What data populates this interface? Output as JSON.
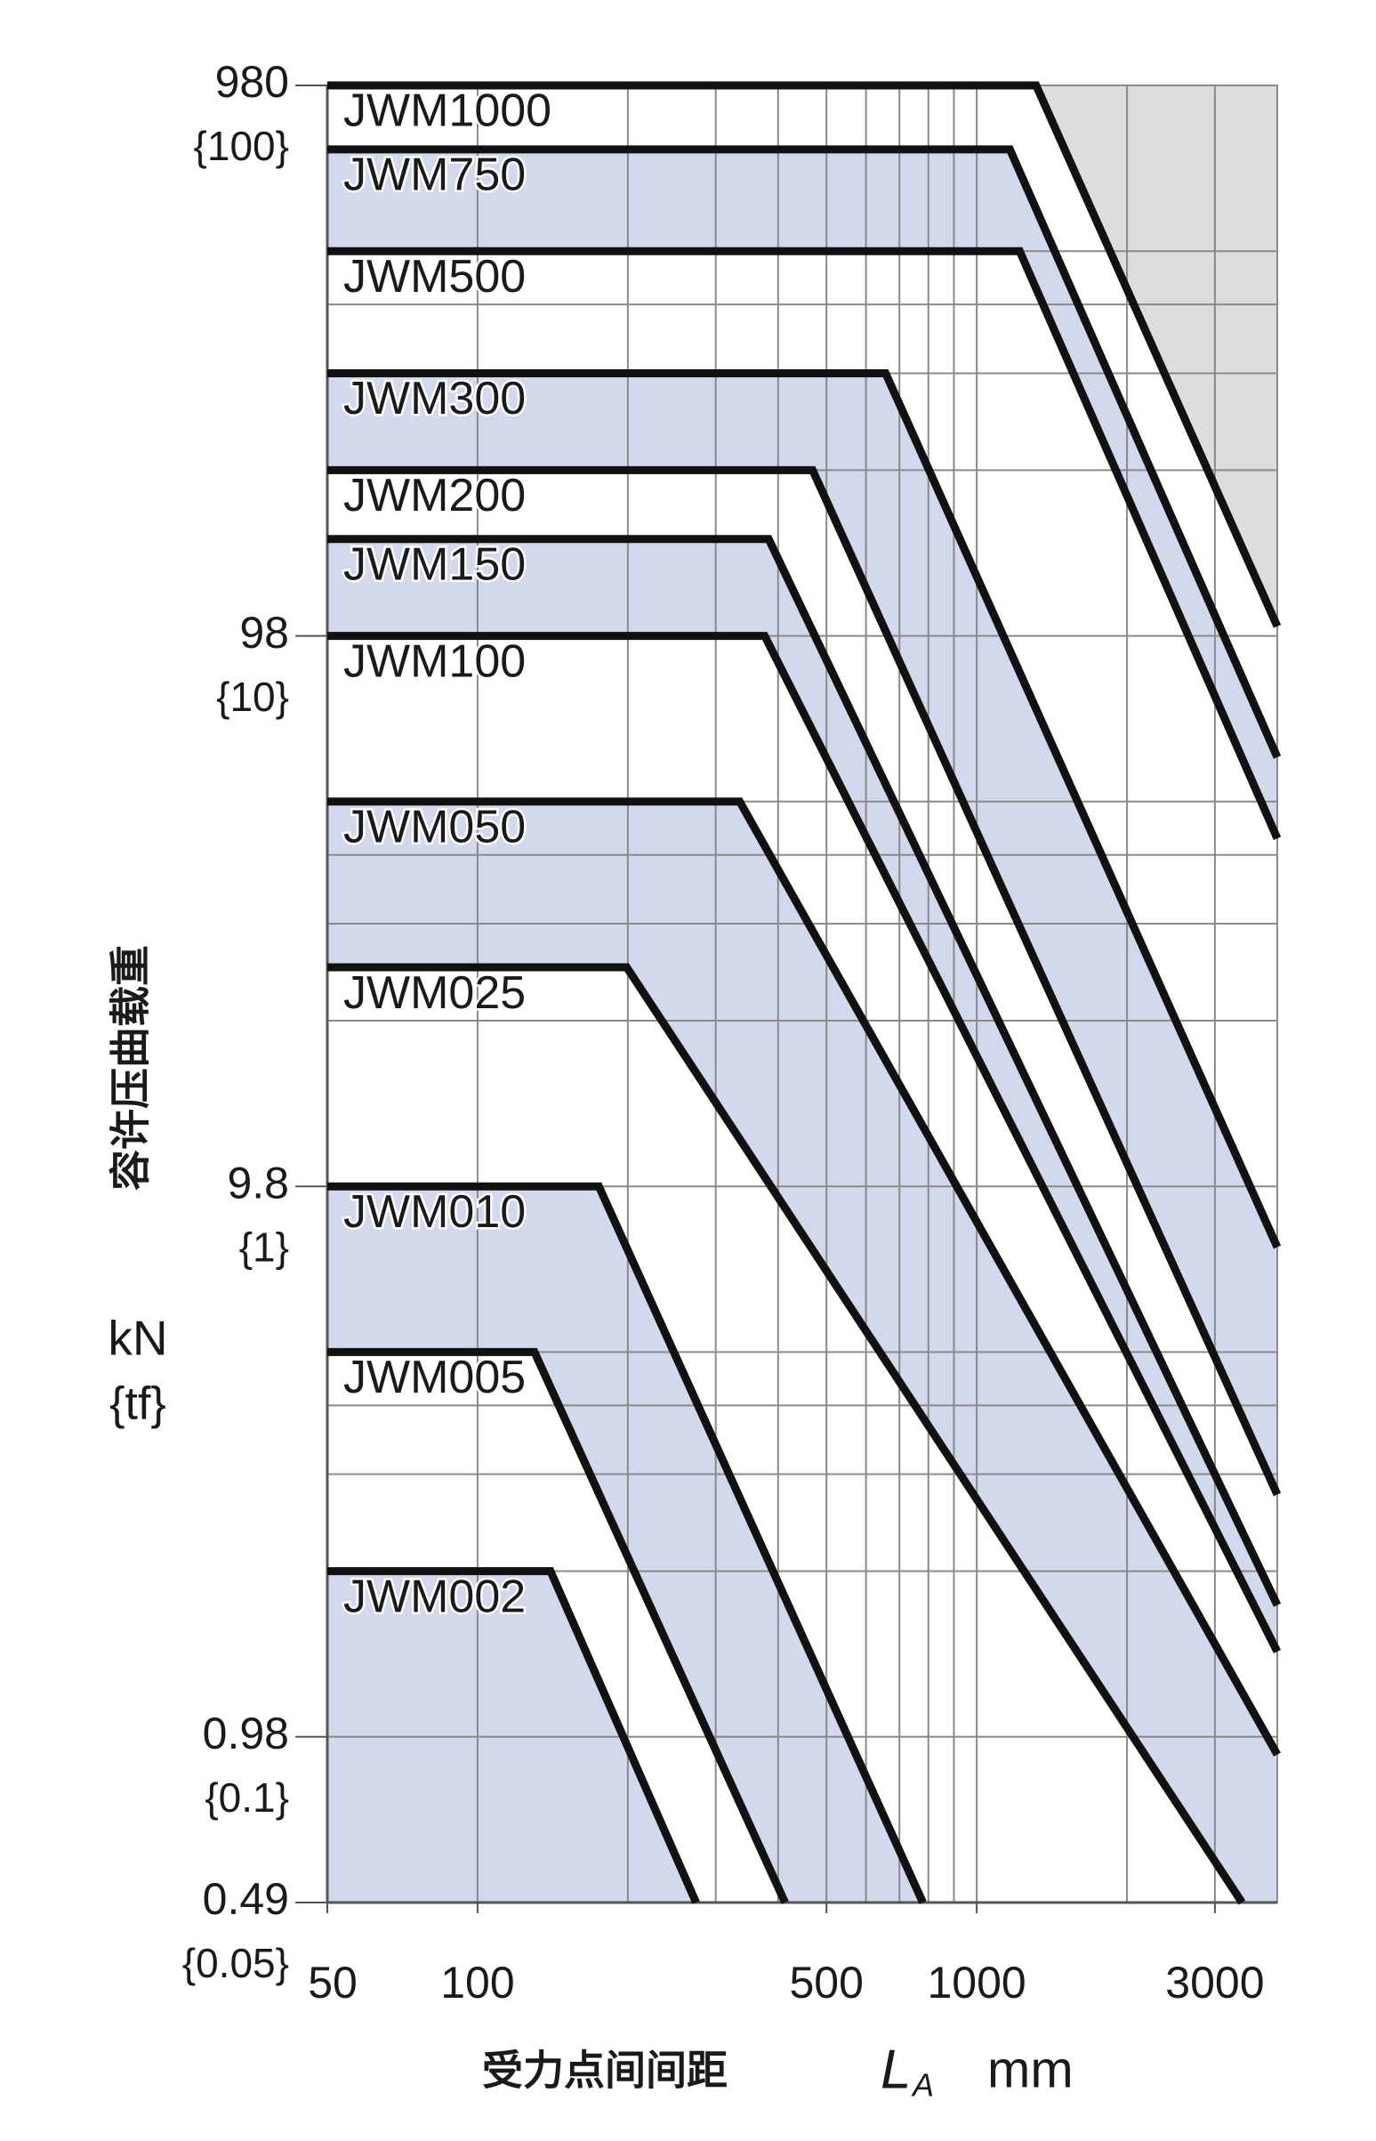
{
  "chart_data": {
    "type": "line",
    "log_x": true,
    "log_y": true,
    "y_label": "容许压曲载重",
    "y_unit": "kN",
    "y_unit_secondary": "{tf}",
    "x_label": "受力点间间距",
    "x_symbol": "L",
    "x_symbol_sub": "A",
    "x_unit": "mm",
    "xlim": [
      50,
      4000
    ],
    "xticks": [
      50,
      100,
      500,
      1000,
      3000
    ],
    "xgrid": [
      100,
      200,
      300,
      400,
      500,
      600,
      700,
      800,
      900,
      1000,
      2000,
      3000
    ],
    "ylim": [
      0.49,
      980
    ],
    "yticks": [
      980,
      98,
      9.8,
      0.98,
      0.49
    ],
    "ytick_tf_labels": [
      "{100}",
      "{10}",
      "{1}",
      "{0.1}",
      "{0.05}"
    ],
    "ygrid": [
      0.98,
      1.96,
      2.94,
      3.92,
      4.9,
      9.8,
      19.6,
      29.4,
      39.2,
      49,
      98,
      196,
      294,
      392,
      490,
      980
    ],
    "exceeded_region_color": "#dcdddc",
    "line_color": "#111111",
    "grid_color": "#8a8a8a",
    "series": [
      {
        "name": "JWM1000",
        "x": [
          50,
          1315,
          4000
        ],
        "values": [
          980,
          980,
          102
        ],
        "fill": "#ffffff"
      },
      {
        "name": "JWM750",
        "x": [
          50,
          1165,
          4000
        ],
        "values": [
          750,
          750,
          59
        ],
        "fill": "#d3d9ec"
      },
      {
        "name": "JWM500",
        "x": [
          50,
          1219,
          4000
        ],
        "values": [
          490,
          490,
          42
        ],
        "fill": "#ffffff"
      },
      {
        "name": "JWM300",
        "x": [
          50,
          657,
          4000
        ],
        "values": [
          294,
          294,
          7.6
        ],
        "fill": "#d3d9ec"
      },
      {
        "name": "JWM200",
        "x": [
          50,
          469,
          4000
        ],
        "values": [
          196,
          196,
          2.7
        ],
        "fill": "#ffffff"
      },
      {
        "name": "JWM150",
        "x": [
          50,
          383,
          4000
        ],
        "values": [
          147,
          147,
          1.7
        ],
        "fill": "#d3d9ec"
      },
      {
        "name": "JWM100",
        "x": [
          50,
          376,
          4000
        ],
        "values": [
          98,
          98,
          1.4
        ],
        "fill": "#ffffff"
      },
      {
        "name": "JWM050",
        "x": [
          50,
          335,
          4000
        ],
        "values": [
          49,
          49,
          0.91
        ],
        "fill": "#d3d9ec"
      },
      {
        "name": "JWM025",
        "x": [
          50,
          199,
          3400
        ],
        "values": [
          24.5,
          24.5,
          0.49
        ],
        "fill": "#ffffff"
      },
      {
        "name": "JWM010",
        "x": [
          50,
          175,
          780
        ],
        "values": [
          9.8,
          9.8,
          0.49
        ],
        "fill": "#d3d9ec"
      },
      {
        "name": "JWM005",
        "x": [
          50,
          130,
          413
        ],
        "values": [
          4.9,
          4.9,
          0.49
        ],
        "fill": "#ffffff"
      },
      {
        "name": "JWM002",
        "x": [
          50,
          140,
          274
        ],
        "values": [
          1.96,
          1.96,
          0.49
        ],
        "fill": "#d3d9ec"
      }
    ]
  }
}
